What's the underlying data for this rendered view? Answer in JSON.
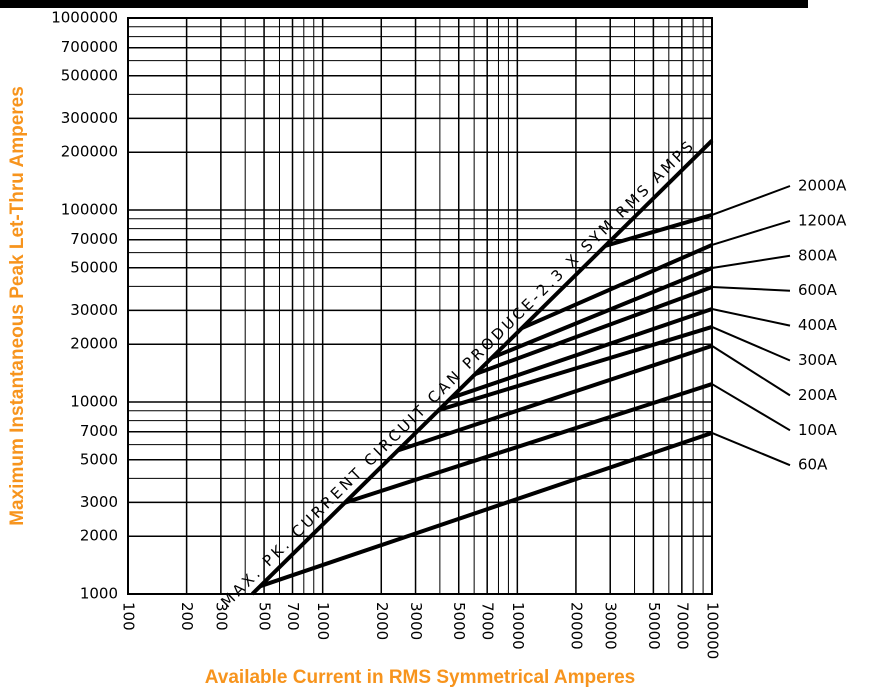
{
  "chart_data": {
    "type": "line",
    "log_x": true,
    "log_y": true,
    "grid": true,
    "xlabel": "Available Current in RMS Symmetrical Amperes",
    "ylabel": "Maximum Instantaneous Peak Let-Thru Amperes",
    "xlim": [
      100,
      100000
    ],
    "ylim": [
      1000,
      1000000
    ],
    "xticks": [
      100,
      200,
      300,
      500,
      700,
      1000,
      2000,
      3000,
      5000,
      7000,
      10000,
      20000,
      30000,
      50000,
      70000,
      100000
    ],
    "yticks": [
      1000,
      2000,
      3000,
      5000,
      7000,
      10000,
      20000,
      30000,
      50000,
      70000,
      100000,
      200000,
      300000,
      500000,
      700000,
      1000000
    ],
    "annotation": "MAX. PK. CURRENT CIRCUIT CAN PRODUCE-2.3 X SYM RMS AMPS",
    "max_line": {
      "color": "#000000",
      "x": [
        435,
        100000
      ],
      "values": [
        1000,
        230000
      ]
    },
    "series": [
      {
        "name": "2000A",
        "color": "#000000",
        "x": [
          28200,
          100000
        ],
        "values": [
          65000,
          94200
        ]
      },
      {
        "name": "1200A",
        "color": "#000000",
        "x": [
          10600,
          100000
        ],
        "values": [
          24300,
          65800
        ]
      },
      {
        "name": "800A",
        "color": "#000000",
        "x": [
          7400,
          100000
        ],
        "values": [
          17000,
          49900
        ]
      },
      {
        "name": "600A",
        "color": "#000000",
        "x": [
          6100,
          100000
        ],
        "values": [
          14000,
          39700
        ]
      },
      {
        "name": "400A",
        "color": "#000000",
        "x": [
          4570,
          100000
        ],
        "values": [
          10500,
          30500
        ]
      },
      {
        "name": "300A",
        "color": "#000000",
        "x": [
          3950,
          100000
        ],
        "values": [
          9080,
          24600
        ]
      },
      {
        "name": "200A",
        "color": "#000000",
        "x": [
          2440,
          100000
        ],
        "values": [
          5600,
          19600
        ]
      },
      {
        "name": "100A",
        "color": "#000000",
        "x": [
          1300,
          100000
        ],
        "values": [
          2990,
          12400
        ]
      },
      {
        "name": "60A",
        "color": "#000000",
        "x": [
          480,
          100000
        ],
        "values": [
          1100,
          6900
        ]
      }
    ]
  }
}
